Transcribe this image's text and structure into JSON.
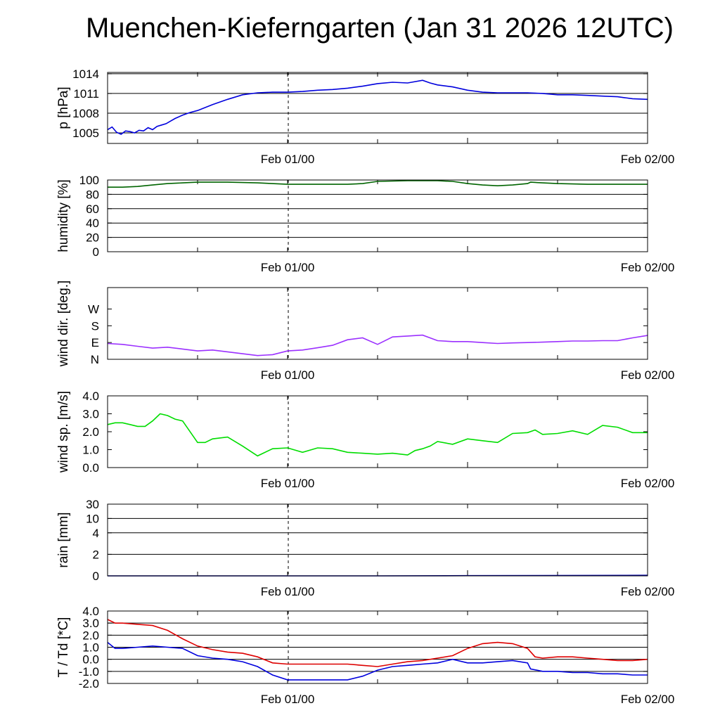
{
  "title": "Muenchen-Kieferngarten (Jan 31 2026 12UTC)",
  "x_tick_labels": [
    "Feb 01/00",
    "Feb 02/00"
  ],
  "chart_data": [
    {
      "type": "line",
      "ylabel": "p [hPa]",
      "ylim": [
        1003.4,
        1014.2
      ],
      "yticks": [
        1005,
        1008,
        1011,
        1014
      ],
      "tick_labels": [
        "1005",
        "1008",
        "1011",
        "1014"
      ],
      "grid": true,
      "xlim": [
        0,
        36
      ],
      "x_label_positions": [
        12,
        36
      ],
      "series": [
        {
          "color": "#0000dd",
          "x": [
            0,
            0.3,
            0.6,
            0.9,
            1.2,
            1.5,
            1.8,
            2.1,
            2.4,
            2.7,
            3.0,
            3.3,
            3.6,
            3.9,
            4.2,
            4.5,
            5.0,
            5.5,
            6.0,
            7.0,
            8.0,
            9.0,
            10.0,
            11.0,
            12.0,
            13.0,
            14.0,
            15.0,
            16.0,
            17.0,
            18.0,
            19.0,
            20.0,
            21.0,
            21.5,
            22.0,
            23.0,
            24.0,
            25.0,
            26.0,
            27.0,
            28.0,
            29.0,
            30.0,
            31.0,
            32.0,
            33.0,
            34.0,
            35.0,
            36.0
          ],
          "y": [
            1005.5,
            1005.9,
            1005.1,
            1004.8,
            1005.3,
            1005.2,
            1005.0,
            1005.4,
            1005.3,
            1005.8,
            1005.5,
            1006.0,
            1006.2,
            1006.4,
            1006.8,
            1007.2,
            1007.7,
            1008.1,
            1008.4,
            1009.3,
            1010.1,
            1010.8,
            1011.1,
            1011.2,
            1011.2,
            1011.3,
            1011.5,
            1011.6,
            1011.8,
            1012.1,
            1012.5,
            1012.7,
            1012.6,
            1013.0,
            1012.6,
            1012.3,
            1012.0,
            1011.5,
            1011.2,
            1011.1,
            1011.1,
            1011.1,
            1011.0,
            1010.8,
            1010.8,
            1010.7,
            1010.6,
            1010.5,
            1010.2,
            1010.1
          ]
        }
      ]
    },
    {
      "type": "line",
      "ylabel": "humidity [%]",
      "ylim": [
        0,
        100
      ],
      "yticks": [
        0,
        20,
        40,
        60,
        80,
        100
      ],
      "tick_labels": [
        "0",
        "20",
        "40",
        "60",
        "80",
        "100"
      ],
      "grid": true,
      "xlim": [
        0,
        36
      ],
      "x_label_positions": [
        12,
        36
      ],
      "series": [
        {
          "color": "#006400",
          "x": [
            0,
            1,
            2,
            3,
            4,
            5,
            6,
            8,
            10,
            12,
            14,
            16,
            17,
            18,
            20,
            22,
            23,
            24,
            25,
            26,
            27,
            28,
            28.2,
            29,
            30,
            32,
            34,
            36
          ],
          "y": [
            90,
            90,
            91,
            93,
            95,
            96,
            97,
            97,
            96,
            94,
            94,
            94,
            95,
            98,
            99,
            99,
            98,
            95,
            93,
            92,
            93,
            95,
            97,
            96,
            95,
            94,
            94,
            94
          ]
        }
      ]
    },
    {
      "type": "line",
      "ylabel": "wind dir. [deg.]",
      "ylim": [
        0,
        385
      ],
      "yticks": [
        0,
        90,
        180,
        270
      ],
      "tick_labels": [
        "N",
        "E",
        "S",
        "W"
      ],
      "grid": false,
      "xlim": [
        0,
        36
      ],
      "x_label_positions": [
        12,
        36
      ],
      "series": [
        {
          "color": "#9b30ff",
          "x": [
            0,
            1,
            2,
            3,
            4,
            5,
            6,
            7,
            8,
            9,
            10,
            11,
            12,
            13,
            14,
            15,
            16,
            17,
            18,
            19,
            20,
            21,
            22,
            23,
            24,
            25,
            26,
            27,
            28,
            29,
            30,
            31,
            32,
            33,
            34,
            35,
            36
          ],
          "y": [
            85,
            80,
            70,
            60,
            65,
            55,
            45,
            50,
            40,
            30,
            20,
            25,
            45,
            50,
            62,
            75,
            105,
            115,
            80,
            120,
            125,
            130,
            100,
            95,
            95,
            90,
            85,
            88,
            90,
            92,
            95,
            98,
            98,
            100,
            100,
            115,
            128
          ]
        }
      ]
    },
    {
      "type": "line",
      "ylabel": "wind sp. [m/s]",
      "ylim": [
        0,
        4
      ],
      "yticks": [
        0,
        1,
        2,
        3,
        4
      ],
      "tick_labels": [
        "0.0",
        "1.0",
        "2.0",
        "3.0",
        "4.0"
      ],
      "grid": false,
      "xlim": [
        0,
        36
      ],
      "x_label_positions": [
        12,
        36
      ],
      "series": [
        {
          "color": "#00dd00",
          "x": [
            0,
            0.5,
            1,
            1.5,
            2,
            2.5,
            3,
            3.5,
            4,
            4.5,
            5,
            6,
            6.5,
            7,
            8,
            9,
            10,
            11,
            12,
            13,
            14,
            15,
            16,
            17,
            18,
            19,
            20,
            20.5,
            21,
            21.5,
            22,
            23,
            24,
            25,
            26,
            27,
            28,
            28.5,
            29,
            30,
            31,
            32,
            33,
            34,
            35,
            36
          ],
          "y": [
            2.4,
            2.5,
            2.5,
            2.4,
            2.3,
            2.3,
            2.6,
            3.0,
            2.9,
            2.7,
            2.6,
            1.4,
            1.4,
            1.6,
            1.7,
            1.2,
            0.65,
            1.05,
            1.1,
            0.85,
            1.1,
            1.05,
            0.85,
            0.8,
            0.75,
            0.8,
            0.7,
            0.95,
            1.05,
            1.2,
            1.45,
            1.3,
            1.6,
            1.5,
            1.4,
            1.9,
            1.95,
            2.1,
            1.85,
            1.9,
            2.05,
            1.85,
            2.35,
            2.25,
            1.95,
            1.95
          ]
        }
      ]
    },
    {
      "type": "line",
      "ylabel": "rain [mm]",
      "ylim": [
        0,
        30
      ],
      "yticks": [
        0,
        2,
        4,
        10,
        30
      ],
      "tick_labels": [
        "0",
        "2",
        "4",
        "10",
        "30"
      ],
      "ylim_note": "non-linear scale",
      "grid": true,
      "xlim": [
        0,
        36
      ],
      "x_label_positions": [
        12,
        36
      ],
      "series": [
        {
          "color": "#0000aa",
          "x": [
            0,
            18,
            24,
            36
          ],
          "y": [
            0,
            0,
            0.02,
            0.05
          ]
        }
      ]
    },
    {
      "type": "line",
      "ylabel": "T / Td [*C]",
      "ylim": [
        -2,
        4
      ],
      "yticks": [
        -2,
        -1,
        0,
        1,
        2,
        3,
        4
      ],
      "tick_labels": [
        "-2.0",
        "-1.0",
        "0.0",
        "1.0",
        "2.0",
        "3.0",
        "4.0"
      ],
      "grid": true,
      "xlim": [
        0,
        36
      ],
      "x_label_positions": [
        12,
        36
      ],
      "series": [
        {
          "color": "#dd0000",
          "x": [
            0,
            0.5,
            1,
            2,
            3,
            4,
            5,
            6,
            7,
            8,
            9,
            10,
            11,
            12,
            13,
            14,
            15,
            16,
            17,
            18,
            19,
            20,
            21,
            22,
            23,
            24,
            25,
            26,
            27,
            28,
            28.5,
            29,
            30,
            31,
            32,
            33,
            34,
            35,
            36
          ],
          "y": [
            3.3,
            3.0,
            3.0,
            2.9,
            2.8,
            2.4,
            1.7,
            1.1,
            0.8,
            0.6,
            0.5,
            0.2,
            -0.3,
            -0.4,
            -0.4,
            -0.4,
            -0.4,
            -0.4,
            -0.5,
            -0.6,
            -0.4,
            -0.2,
            -0.1,
            0.1,
            0.3,
            0.9,
            1.3,
            1.4,
            1.3,
            0.9,
            0.2,
            0.1,
            0.2,
            0.2,
            0.1,
            0.0,
            -0.1,
            -0.1,
            0.0
          ]
        },
        {
          "color": "#0000dd",
          "x": [
            0,
            0.5,
            1,
            2,
            3,
            4,
            5,
            6,
            7,
            8,
            9,
            10,
            11,
            12,
            13,
            14,
            15,
            16,
            17,
            18,
            19,
            20,
            21,
            22,
            23,
            24,
            25,
            26,
            27,
            28,
            28.2,
            29,
            30,
            31,
            32,
            33,
            34,
            35,
            36
          ],
          "y": [
            1.4,
            0.9,
            0.9,
            1.0,
            1.1,
            1.0,
            0.9,
            0.3,
            0.1,
            0.0,
            -0.2,
            -0.6,
            -1.3,
            -1.7,
            -1.7,
            -1.7,
            -1.7,
            -1.7,
            -1.4,
            -0.9,
            -0.6,
            -0.5,
            -0.4,
            -0.3,
            0.0,
            -0.3,
            -0.3,
            -0.2,
            -0.1,
            -0.3,
            -0.8,
            -1.0,
            -1.0,
            -1.1,
            -1.1,
            -1.2,
            -1.2,
            -1.3,
            -1.3
          ]
        }
      ]
    }
  ]
}
